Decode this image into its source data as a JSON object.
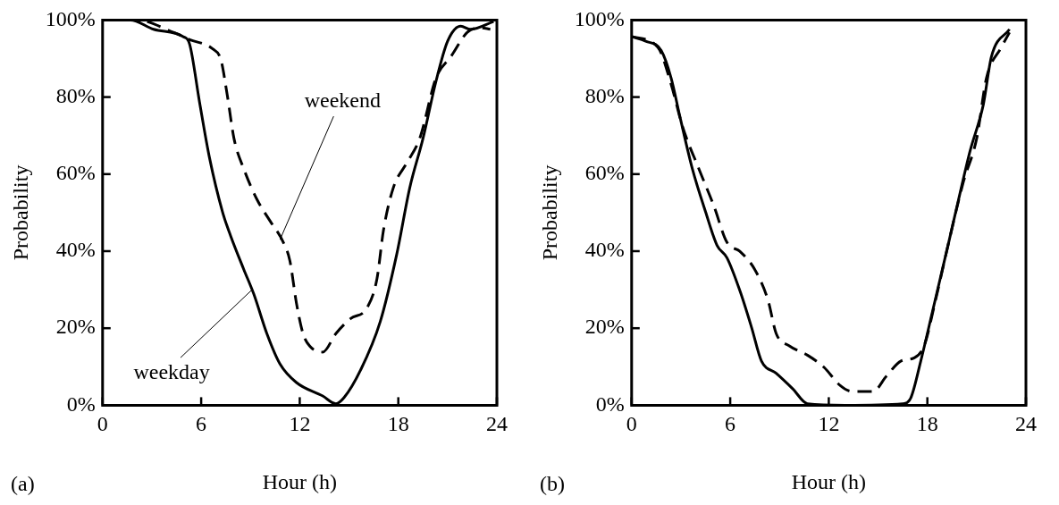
{
  "chart_data": [
    {
      "type": "line",
      "xlabel": "Hour (h)",
      "ylabel": "Probability",
      "xlim": [
        0,
        24
      ],
      "xticks": [
        0,
        6,
        12,
        18,
        24
      ],
      "ylim": [
        0,
        100
      ],
      "yticks": [
        {
          "value": 0,
          "label": "0%"
        },
        {
          "value": 20,
          "label": "20%"
        },
        {
          "value": 40,
          "label": "40%"
        },
        {
          "value": 60,
          "label": "60%"
        },
        {
          "value": 80,
          "label": "80%"
        },
        {
          "value": 100,
          "label": "100%"
        }
      ],
      "grid": false,
      "legend": false,
      "marker": "none",
      "annotations": [
        {
          "text": "weekend",
          "x": 10.8,
          "y": 43
        },
        {
          "text": "weekday",
          "x": 9.1,
          "y": 30
        },
        "(a)"
      ],
      "series": [
        {
          "color": "#000000",
          "line_style": "solid",
          "x": [
            0,
            1.7,
            3.1,
            4.9,
            5.3,
            5.9,
            6.5,
            7.3,
            7.8,
            8.6,
            9.2,
            10.0,
            10.8,
            11.8,
            13.4,
            14.2,
            14.7,
            15.7,
            16.9,
            17.9,
            18.7,
            19.5,
            20.3,
            21.0,
            21.8,
            22.4,
            23.8
          ],
          "values": [
            100,
            100,
            97.6,
            95.7,
            93.7,
            78.7,
            64.4,
            50.2,
            43.9,
            35.2,
            28.9,
            18.6,
            10.7,
            5.9,
            2.4,
            0.4,
            2.0,
            9.1,
            21.7,
            39.1,
            56.5,
            69.2,
            84.2,
            94.5,
            98.4,
            97.6,
            99.6
          ]
        },
        {
          "color": "#000000",
          "line_style": "dashed",
          "x": [
            0,
            2.1,
            4.3,
            5.3,
            6.7,
            7.2,
            7.6,
            8.0,
            8.6,
            9.4,
            10.2,
            11.0,
            11.4,
            11.8,
            12.2,
            12.6,
            13.4,
            14.2,
            15.1,
            16.1,
            16.7,
            17.1,
            17.7,
            18.5,
            19.3,
            20.3,
            21.2,
            22.2,
            23.0,
            23.6
          ],
          "values": [
            100,
            100,
            96.8,
            94.9,
            92.5,
            89.7,
            80.2,
            69.2,
            61.3,
            53.4,
            47.8,
            42.3,
            37.5,
            26.5,
            18.6,
            15.4,
            13.8,
            18.6,
            22.5,
            25.3,
            32.8,
            45.5,
            56.5,
            62.8,
            69.2,
            85.0,
            90.5,
            96.8,
            98.0,
            97.6
          ]
        }
      ]
    },
    {
      "type": "line",
      "xlabel": "Hour (h)",
      "ylabel": "Probability",
      "xlim": [
        0,
        24
      ],
      "xticks": [
        0,
        6,
        12,
        18,
        24
      ],
      "ylim": [
        0,
        100
      ],
      "yticks": [
        {
          "value": 0,
          "label": "0%"
        },
        {
          "value": 20,
          "label": "20%"
        },
        {
          "value": 40,
          "label": "40%"
        },
        {
          "value": 60,
          "label": "60%"
        },
        {
          "value": 80,
          "label": "80%"
        },
        {
          "value": 100,
          "label": "100%"
        }
      ],
      "grid": false,
      "legend": false,
      "marker": "none",
      "annotations": [
        "(b)"
      ],
      "series": [
        {
          "color": "#000000",
          "line_style": "solid",
          "x": [
            0,
            0.86,
            1.8,
            2.4,
            2.95,
            3.7,
            4.5,
            5.2,
            5.8,
            6.6,
            7.3,
            7.9,
            8.8,
            9.8,
            10.7,
            13.0,
            16.5,
            17.0,
            17.6,
            18.3,
            19.3,
            19.9,
            20.6,
            21.4,
            21.9,
            23.0
          ],
          "values": [
            95.7,
            94.5,
            92.1,
            85.0,
            74.7,
            61.3,
            50.2,
            41.5,
            38.3,
            29.6,
            20.2,
            11.5,
            8.3,
            4.3,
            0.4,
            0,
            0.4,
            2.0,
            11.5,
            24.1,
            42.3,
            53.4,
            66.0,
            77.9,
            90.5,
            97.6
          ]
        },
        {
          "color": "#000000",
          "line_style": "dashed",
          "x": [
            0,
            1.6,
            2.4,
            3.1,
            4.1,
            5.0,
            5.8,
            6.6,
            7.5,
            8.3,
            8.8,
            9.6,
            10.7,
            11.7,
            12.7,
            13.4,
            14.7,
            15.5,
            16.4,
            17.2,
            17.8,
            18.5,
            19.3,
            20.2,
            21.0,
            21.6,
            22.5,
            23.0
          ],
          "values": [
            95.7,
            92.9,
            83.4,
            72.3,
            61.3,
            51.8,
            42.3,
            39.9,
            35.2,
            27.3,
            18.6,
            15.4,
            13.0,
            9.9,
            5.1,
            3.6,
            3.6,
            7.5,
            11.5,
            12.3,
            15.4,
            27.3,
            42.3,
            58.1,
            69.2,
            85.0,
            92.9,
            96.8
          ]
        }
      ]
    }
  ]
}
